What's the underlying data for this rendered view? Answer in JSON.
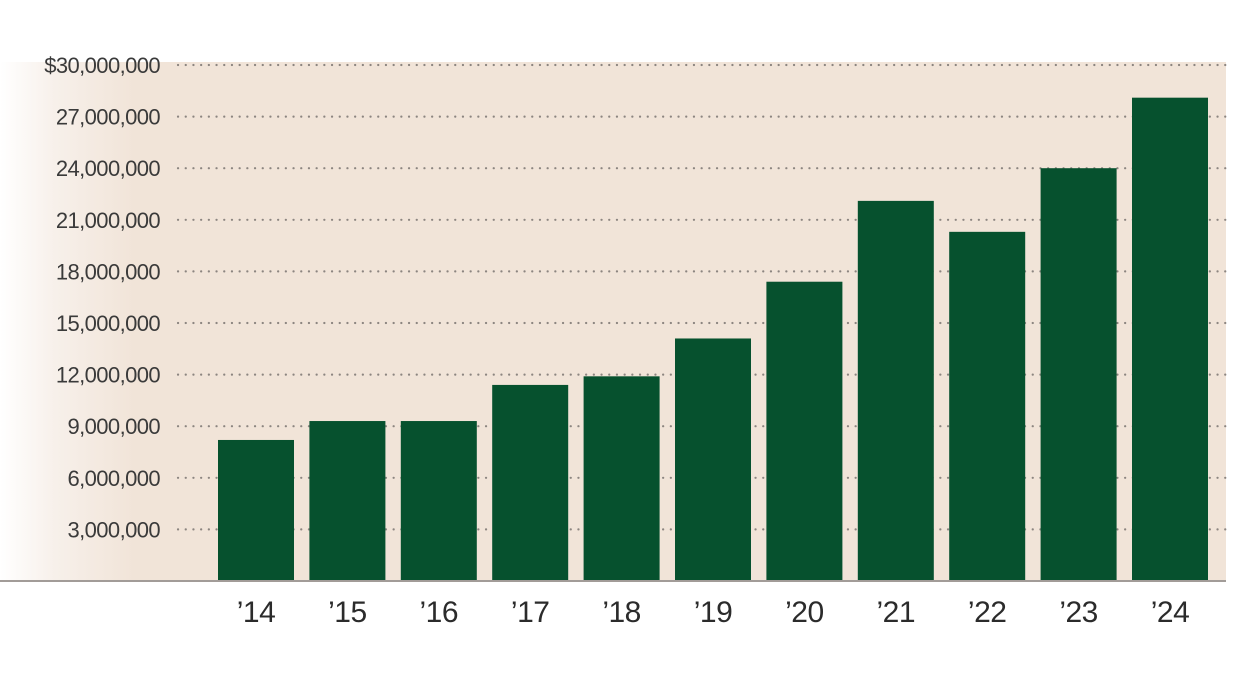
{
  "chart_data": {
    "type": "bar",
    "title": "",
    "xlabel": "",
    "ylabel": "",
    "categories": [
      "’14",
      "’15",
      "’16",
      "’17",
      "’18",
      "’19",
      "’20",
      "’21",
      "’22",
      "’23",
      "’24"
    ],
    "values": [
      8200000,
      9300000,
      9300000,
      11400000,
      11900000,
      14100000,
      17400000,
      22100000,
      20300000,
      24000000,
      28100000
    ],
    "ylim": [
      0,
      30000000
    ],
    "yticks": [
      3000000,
      6000000,
      9000000,
      12000000,
      15000000,
      18000000,
      21000000,
      24000000,
      27000000,
      30000000
    ],
    "ytick_labels": [
      "3,000,000",
      "6,000,000",
      "9,000,000",
      "12,000,000",
      "15,000,000",
      "18,000,000",
      "21,000,000",
      "24,000,000",
      "27,000,000",
      "$30,000,000"
    ],
    "grid": "dotted horizontal",
    "legend": "none",
    "colors": {
      "bar": "#06512e",
      "plot_background": "#f1e4d8",
      "gridline": "#8c8580",
      "axis": "#a29c98"
    }
  }
}
